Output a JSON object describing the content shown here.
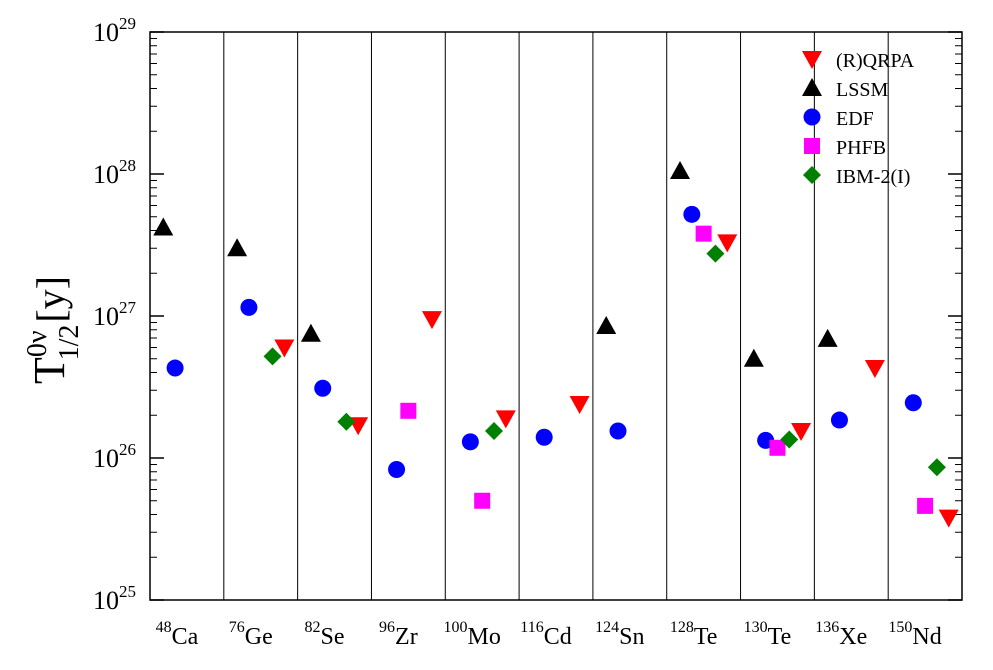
{
  "chart_data": {
    "type": "scatter",
    "ylabel": {
      "base": "T",
      "sup": "0ν",
      "sub": "1/2",
      "tail": "[y]"
    },
    "yscale": "log",
    "ylim": [
      1e+25,
      1e+29
    ],
    "yticks": [
      {
        "base": "10",
        "exp": "25",
        "value": 1e+25
      },
      {
        "base": "10",
        "exp": "26",
        "value": 1e+26
      },
      {
        "base": "10",
        "exp": "27",
        "value": 1e+27
      },
      {
        "base": "10",
        "exp": "28",
        "value": 1e+28
      },
      {
        "base": "10",
        "exp": "29",
        "value": 1e+29
      }
    ],
    "categories": [
      {
        "mass": "48",
        "symbol": "Ca"
      },
      {
        "mass": "76",
        "symbol": "Ge"
      },
      {
        "mass": "82",
        "symbol": "Se"
      },
      {
        "mass": "96",
        "symbol": "Zr"
      },
      {
        "mass": "100",
        "symbol": "Mo"
      },
      {
        "mass": "116",
        "symbol": "Cd"
      },
      {
        "mass": "124",
        "symbol": "Sn"
      },
      {
        "mass": "128",
        "symbol": "Te"
      },
      {
        "mass": "130",
        "symbol": "Te"
      },
      {
        "mass": "136",
        "symbol": "Xe"
      },
      {
        "mass": "150",
        "symbol": "Nd"
      }
    ],
    "legend_position": "top-right",
    "series": [
      {
        "name": "(R)QRPA",
        "marker": "triangle-down",
        "color": "#ff0000",
        "points": [
          {
            "cat": 1,
            "y": 6e+26
          },
          {
            "cat": 2,
            "y": 1.7e+26
          },
          {
            "cat": 3,
            "y": 9.5e+26
          },
          {
            "cat": 4,
            "y": 1.9e+26
          },
          {
            "cat": 5,
            "y": 2.4e+26
          },
          {
            "cat": 7,
            "y": 3.3e+27
          },
          {
            "cat": 8,
            "y": 1.55e+26
          },
          {
            "cat": 9,
            "y": 4.3e+26
          },
          {
            "cat": 10,
            "y": 3.8e+25
          }
        ]
      },
      {
        "name": "LSSM",
        "marker": "triangle-up",
        "color": "#000000",
        "points": [
          {
            "cat": 0,
            "y": 4.2e+27
          },
          {
            "cat": 1,
            "y": 3e+27
          },
          {
            "cat": 2,
            "y": 7.5e+26
          },
          {
            "cat": 6,
            "y": 8.5e+26
          },
          {
            "cat": 7,
            "y": 1.05e+28
          },
          {
            "cat": 8,
            "y": 5e+26
          },
          {
            "cat": 9,
            "y": 6.9e+26
          }
        ]
      },
      {
        "name": "EDF",
        "marker": "circle",
        "color": "#0000ff",
        "points": [
          {
            "cat": 0,
            "y": 4.3e+26
          },
          {
            "cat": 1,
            "y": 1.15e+27
          },
          {
            "cat": 2,
            "y": 3.1e+26
          },
          {
            "cat": 3,
            "y": 8.3e+25
          },
          {
            "cat": 4,
            "y": 1.3e+26
          },
          {
            "cat": 5,
            "y": 1.4e+26
          },
          {
            "cat": 6,
            "y": 1.55e+26
          },
          {
            "cat": 7,
            "y": 5.2e+27
          },
          {
            "cat": 8,
            "y": 1.33e+26
          },
          {
            "cat": 9,
            "y": 1.85e+26
          },
          {
            "cat": 10,
            "y": 2.45e+26
          }
        ]
      },
      {
        "name": "PHFB",
        "marker": "square",
        "color": "#ff00ff",
        "points": [
          {
            "cat": 3,
            "y": 2.15e+26
          },
          {
            "cat": 4,
            "y": 5e+25
          },
          {
            "cat": 7,
            "y": 3.8e+27
          },
          {
            "cat": 8,
            "y": 1.18e+26
          },
          {
            "cat": 10,
            "y": 4.6e+25
          }
        ]
      },
      {
        "name": "IBM-2(I)",
        "marker": "diamond",
        "color": "#008000",
        "points": [
          {
            "cat": 1,
            "y": 5.2e+26
          },
          {
            "cat": 2,
            "y": 1.8e+26
          },
          {
            "cat": 4,
            "y": 1.55e+26
          },
          {
            "cat": 7,
            "y": 2.75e+27
          },
          {
            "cat": 8,
            "y": 1.35e+26
          },
          {
            "cat": 10,
            "y": 8.6e+25
          }
        ]
      }
    ]
  }
}
